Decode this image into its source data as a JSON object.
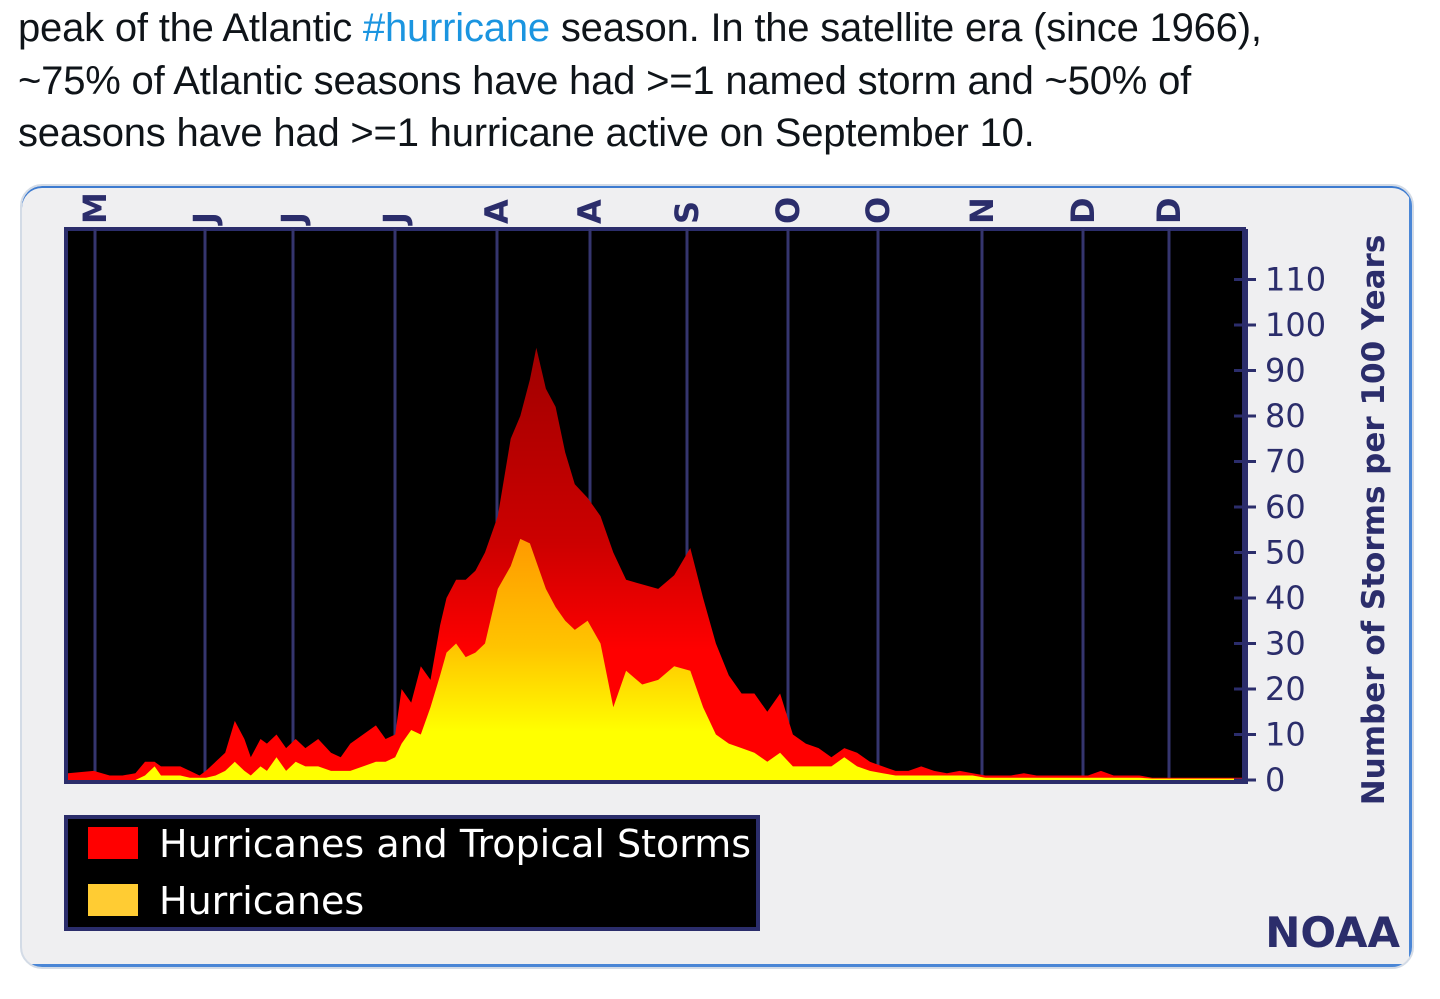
{
  "tweet": {
    "line1_pre": "peak of the Atlantic ",
    "line1_hashtag": "#hurricane",
    "line1_post": " season.  In the satellite era (since 1966),",
    "line2": "~75% of Atlantic seasons have had >=1 named storm and ~50% of",
    "line3": "seasons have had >=1 hurricane active on September 10."
  },
  "colors": {
    "hashtag": "#1b95e0",
    "storms_dark": "#b00000",
    "storms": "#ff0000",
    "hurricanes_top": "#ffa500",
    "hurricanes": "#ffff00",
    "plot_bg": "#000000",
    "axis_navy": "#2b2d6b"
  },
  "chart_data": {
    "type": "area",
    "month_labels": [
      "M",
      "J",
      "J",
      "J",
      "A",
      "A",
      "S",
      "O",
      "O",
      "N",
      "D",
      "D"
    ],
    "ylabel": "Number of Storms per 100 Years",
    "yticks": [
      0,
      10,
      20,
      30,
      40,
      50,
      60,
      70,
      80,
      90,
      100,
      110
    ],
    "ylim": [
      0,
      120
    ],
    "credit": "NOAA",
    "legend": [
      {
        "label": "Hurricanes and Tropical Storms",
        "color": "#ff0000"
      },
      {
        "label": "Hurricanes",
        "color": "#ffcc33"
      }
    ],
    "series": [
      {
        "name": "Hurricanes and Tropical Storms",
        "x": [
          0,
          8,
          13,
          17,
          21,
          24,
          27,
          29,
          32,
          35,
          38,
          41,
          43,
          46,
          49,
          52,
          55,
          57,
          60,
          62,
          65,
          68,
          71,
          74,
          78,
          82,
          85,
          88,
          92,
          96,
          99,
          102,
          104,
          107,
          110,
          113,
          116,
          118,
          121,
          124,
          127,
          130,
          134,
          138,
          141,
          144,
          146,
          149,
          152,
          155,
          158,
          162,
          166,
          170,
          174,
          179,
          184,
          189,
          194,
          198,
          202,
          206,
          210,
          214,
          218,
          222,
          226,
          230,
          234,
          238,
          242,
          246,
          250,
          254,
          258,
          262,
          266,
          270,
          274,
          278,
          282,
          286,
          290,
          294,
          298,
          302,
          306,
          310,
          314,
          318,
          322,
          326,
          330,
          334,
          338,
          342,
          346,
          350,
          354,
          358,
          362,
          366
        ],
        "values": [
          1.5,
          2,
          1,
          1,
          1.5,
          4,
          4,
          3,
          3,
          3,
          2,
          1,
          2,
          4,
          6,
          13,
          9,
          5,
          9,
          8,
          10,
          7,
          9,
          7,
          9,
          6,
          5,
          8,
          10,
          12,
          9,
          10,
          20,
          17,
          25,
          22,
          34,
          40,
          44,
          44,
          46,
          50,
          58,
          75,
          80,
          88,
          95,
          86,
          82,
          72,
          65,
          62,
          58,
          50,
          44,
          43,
          42,
          45,
          51,
          40,
          30,
          23,
          19,
          19,
          15,
          19,
          10,
          8,
          7,
          5,
          7,
          6,
          4,
          3,
          2,
          2,
          3,
          2,
          1.5,
          2,
          1.5,
          1,
          1,
          1,
          1.5,
          1,
          1,
          1,
          1,
          1,
          2,
          1,
          1,
          1,
          0.5,
          0.5,
          0.5,
          0.5,
          0.5,
          0.5,
          0.5,
          0.5
        ]
      },
      {
        "name": "Hurricanes",
        "x": [
          0,
          8,
          13,
          17,
          21,
          24,
          27,
          29,
          32,
          35,
          38,
          41,
          43,
          46,
          49,
          52,
          55,
          57,
          60,
          62,
          65,
          68,
          71,
          74,
          78,
          82,
          85,
          88,
          92,
          96,
          99,
          102,
          104,
          107,
          110,
          113,
          116,
          118,
          121,
          124,
          127,
          130,
          134,
          138,
          141,
          144,
          146,
          149,
          152,
          155,
          158,
          162,
          166,
          170,
          174,
          179,
          184,
          189,
          194,
          198,
          202,
          206,
          210,
          214,
          218,
          222,
          226,
          230,
          234,
          238,
          242,
          246,
          250,
          254,
          258,
          262,
          266,
          270,
          274,
          278,
          282,
          286,
          290,
          294,
          298,
          302,
          306,
          310,
          314,
          318,
          322,
          326,
          330,
          334,
          338,
          342,
          346,
          350,
          354,
          358,
          362,
          366
        ],
        "values": [
          0,
          0,
          0,
          0,
          0,
          1,
          3,
          1,
          1,
          1,
          0.5,
          0.5,
          0.5,
          1,
          2,
          4,
          2,
          1,
          3,
          2,
          5,
          2,
          4,
          3,
          3,
          2,
          2,
          2,
          3,
          4,
          4,
          5,
          8,
          11,
          10,
          16,
          23,
          28,
          30,
          27,
          28,
          30,
          42,
          47,
          53,
          52,
          48,
          42,
          38,
          35,
          33,
          35,
          30,
          16,
          24,
          21,
          22,
          25,
          24,
          16,
          10,
          8,
          7,
          6,
          4,
          6,
          3,
          3,
          3,
          3,
          5,
          3,
          2,
          1.5,
          1,
          1,
          1,
          1,
          1,
          1,
          1,
          0.5,
          0.5,
          0.5,
          0.5,
          0.5,
          0.5,
          0.5,
          0.5,
          0.5,
          0.5,
          0.5,
          0.5,
          0.5,
          0.3,
          0.3,
          0.3,
          0.3,
          0.3,
          0.3,
          0.3,
          0.3
        ]
      }
    ]
  }
}
